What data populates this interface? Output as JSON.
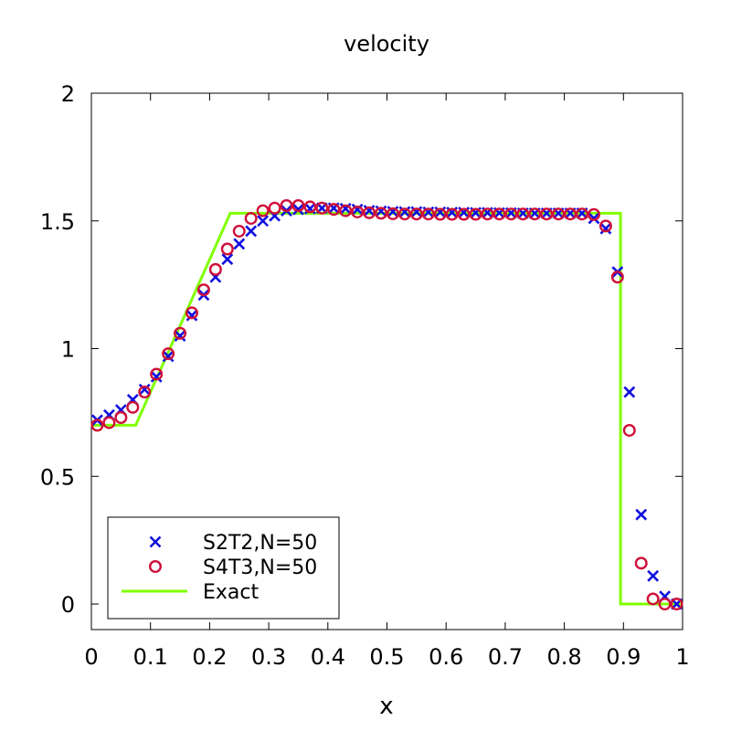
{
  "chart_data": {
    "type": "scatter",
    "title": "velocity",
    "xlabel": "x",
    "ylabel": "",
    "xlim": [
      0,
      1
    ],
    "ylim": [
      -0.1,
      2
    ],
    "xticks": [
      "0",
      "0.1",
      "0.2",
      "0.3",
      "0.4",
      "0.5",
      "0.6",
      "0.7",
      "0.8",
      "0.9",
      "1"
    ],
    "yticks": [
      "0",
      "0.5",
      "1",
      "1.5",
      "2"
    ],
    "legend_position": "bottom-left",
    "series": [
      {
        "name": "S2T2,N=50",
        "marker": "cross",
        "color": "#1010e0",
        "x": [
          0.01,
          0.03,
          0.05,
          0.07,
          0.09,
          0.11,
          0.13,
          0.15,
          0.17,
          0.19,
          0.21,
          0.23,
          0.25,
          0.27,
          0.29,
          0.31,
          0.33,
          0.35,
          0.37,
          0.39,
          0.41,
          0.43,
          0.45,
          0.47,
          0.49,
          0.51,
          0.53,
          0.55,
          0.57,
          0.59,
          0.61,
          0.63,
          0.65,
          0.67,
          0.69,
          0.71,
          0.73,
          0.75,
          0.77,
          0.79,
          0.81,
          0.83,
          0.85,
          0.87,
          0.89,
          0.91,
          0.93,
          0.95,
          0.97,
          0.99
        ],
        "y": [
          0.72,
          0.74,
          0.76,
          0.8,
          0.84,
          0.89,
          0.97,
          1.05,
          1.13,
          1.21,
          1.28,
          1.35,
          1.41,
          1.46,
          1.5,
          1.52,
          1.54,
          1.545,
          1.548,
          1.55,
          1.55,
          1.548,
          1.545,
          1.54,
          1.538,
          1.536,
          1.535,
          1.535,
          1.534,
          1.534,
          1.533,
          1.533,
          1.532,
          1.532,
          1.531,
          1.531,
          1.53,
          1.53,
          1.53,
          1.53,
          1.53,
          1.53,
          1.51,
          1.47,
          1.3,
          0.83,
          0.35,
          0.11,
          0.03,
          0.0
        ]
      },
      {
        "name": "S4T3,N=50",
        "marker": "circle",
        "color": "#d0103a",
        "x": [
          0.01,
          0.03,
          0.05,
          0.07,
          0.09,
          0.11,
          0.13,
          0.15,
          0.17,
          0.19,
          0.21,
          0.23,
          0.25,
          0.27,
          0.29,
          0.31,
          0.33,
          0.35,
          0.37,
          0.39,
          0.41,
          0.43,
          0.45,
          0.47,
          0.49,
          0.51,
          0.53,
          0.55,
          0.57,
          0.59,
          0.61,
          0.63,
          0.65,
          0.67,
          0.69,
          0.71,
          0.73,
          0.75,
          0.77,
          0.79,
          0.81,
          0.83,
          0.85,
          0.87,
          0.89,
          0.91,
          0.93,
          0.95,
          0.97,
          0.99
        ],
        "y": [
          0.7,
          0.71,
          0.73,
          0.77,
          0.83,
          0.9,
          0.98,
          1.06,
          1.14,
          1.23,
          1.31,
          1.39,
          1.46,
          1.51,
          1.54,
          1.55,
          1.56,
          1.56,
          1.555,
          1.55,
          1.545,
          1.54,
          1.535,
          1.532,
          1.53,
          1.528,
          1.527,
          1.527,
          1.527,
          1.526,
          1.526,
          1.526,
          1.526,
          1.527,
          1.527,
          1.527,
          1.527,
          1.527,
          1.527,
          1.527,
          1.527,
          1.527,
          1.525,
          1.48,
          1.28,
          0.68,
          0.16,
          0.02,
          0.0,
          0.0
        ]
      },
      {
        "name": "Exact",
        "marker": "line",
        "color": "#80ff00",
        "x": [
          0,
          0.075,
          0.235,
          0.895,
          0.895,
          1.0
        ],
        "y": [
          0.7,
          0.7,
          1.53,
          1.53,
          0.0,
          0.0
        ]
      }
    ]
  }
}
